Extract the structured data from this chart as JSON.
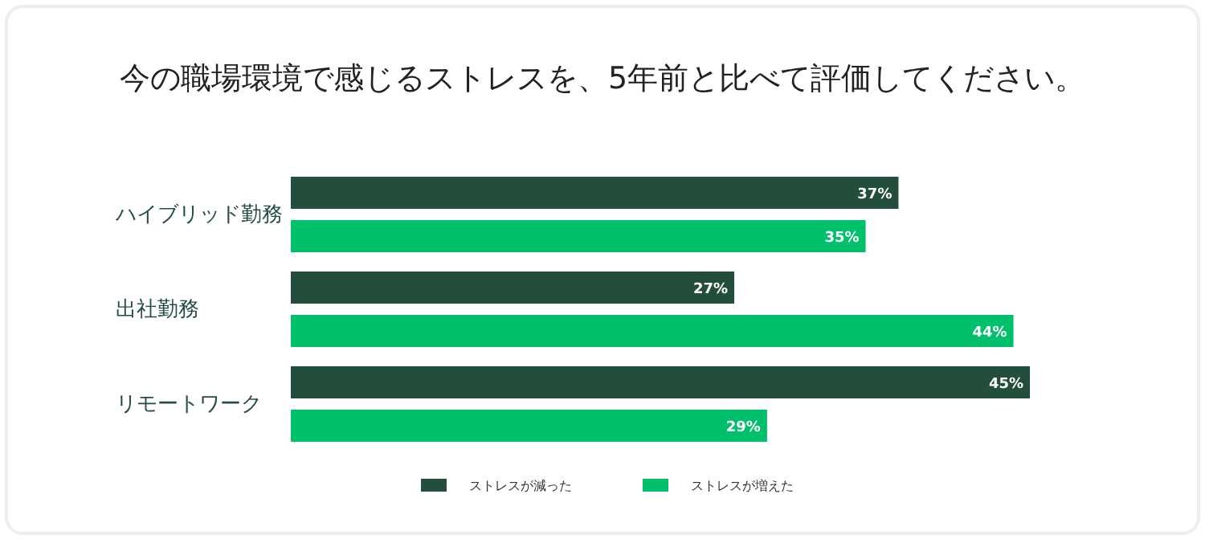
{
  "chart_data": {
    "type": "bar",
    "orientation": "horizontal",
    "title": "今の職場環境で感じるストレスを、5年前と比べて評価してください。",
    "categories": [
      "ハイブリッド勤務",
      "出社勤務",
      "リモートワーク"
    ],
    "series": [
      {
        "name": "ストレスが減った",
        "color": "#234e3b",
        "values": [
          37,
          27,
          45
        ],
        "value_labels": [
          "37%",
          "27%",
          "45%"
        ]
      },
      {
        "name": "ストレスが増えた",
        "color": "#00c06c",
        "values": [
          35,
          44,
          29
        ],
        "value_labels": [
          "35%",
          "44%",
          "29%"
        ]
      }
    ],
    "legend": "bottom"
  }
}
